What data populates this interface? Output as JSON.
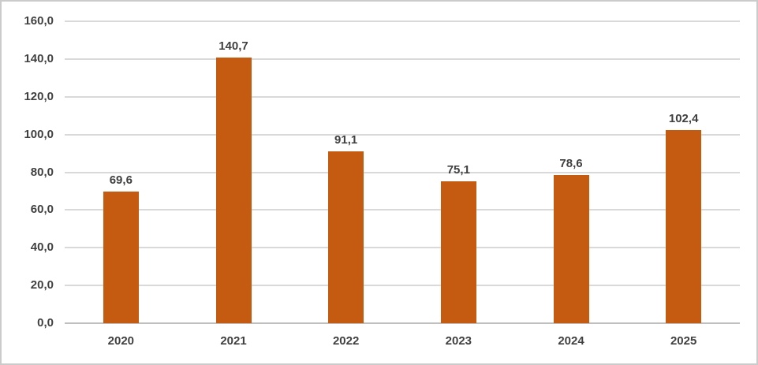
{
  "chart_data": {
    "type": "bar",
    "title": "",
    "xlabel": "",
    "ylabel": "",
    "categories": [
      "2020",
      "2021",
      "2022",
      "2023",
      "2024",
      "2025"
    ],
    "values": [
      69.6,
      140.7,
      91.1,
      75.1,
      78.6,
      102.4
    ],
    "bar_labels": [
      "69,6",
      "140,7",
      "91,1",
      "75,1",
      "78,6",
      "102,4"
    ],
    "ylim": [
      0,
      160
    ],
    "ytick_step": 20,
    "ytick_labels": [
      "0,0",
      "20,0",
      "40,0",
      "60,0",
      "80,0",
      "100,0",
      "120,0",
      "140,0",
      "160,0"
    ],
    "grid": true,
    "legend": false,
    "decimal_separator": ",",
    "colors": {
      "bar": "#C55A11",
      "label_text": "#404040",
      "gridline": "#D9D9D9",
      "axis_line": "#BFBFBF",
      "frame_border": "#CBCBCB",
      "background": "#FFFFFF"
    }
  }
}
